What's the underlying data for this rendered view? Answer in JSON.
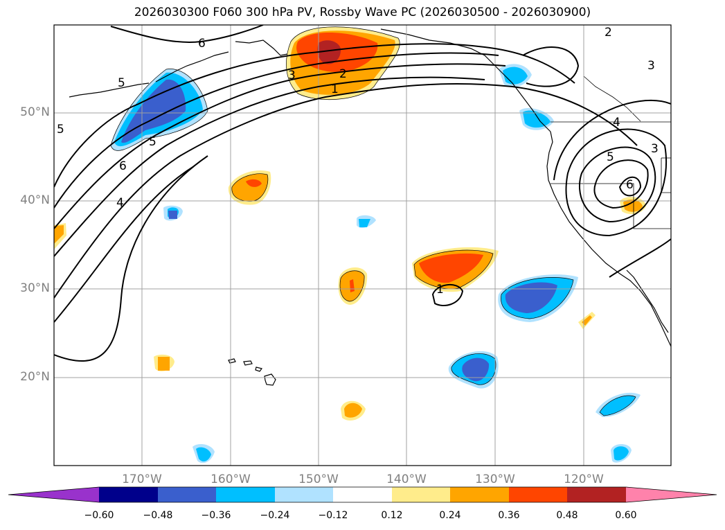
{
  "title": "2026030300 F060 300 hPa PV, Rossby Wave PC (2026030500 - 2026030900)",
  "lat_labels": [
    "50°N",
    "40°N",
    "30°N",
    "20°N"
  ],
  "lon_labels": [
    "170°W",
    "160°W",
    "150°W",
    "140°W",
    "130°W",
    "120°W"
  ],
  "contour_labels": [
    "1",
    "2",
    "3",
    "4",
    "5",
    "6",
    "2",
    "3",
    "4",
    "5",
    "6",
    "5",
    "5",
    "1",
    "3",
    "6"
  ],
  "colorbar": {
    "ticks": [
      "−0.60",
      "−0.48",
      "−0.36",
      "−0.24",
      "−0.12",
      "0.12",
      "0.24",
      "0.36",
      "0.48",
      "0.60"
    ],
    "colors": [
      "#9932cc",
      "#00008b",
      "#3a5fcd",
      "#00bfff",
      "#b0e2ff",
      "#ffffff",
      "#ffec8b",
      "#ffa500",
      "#ff4500",
      "#b22222",
      "#ff82ab"
    ]
  }
}
